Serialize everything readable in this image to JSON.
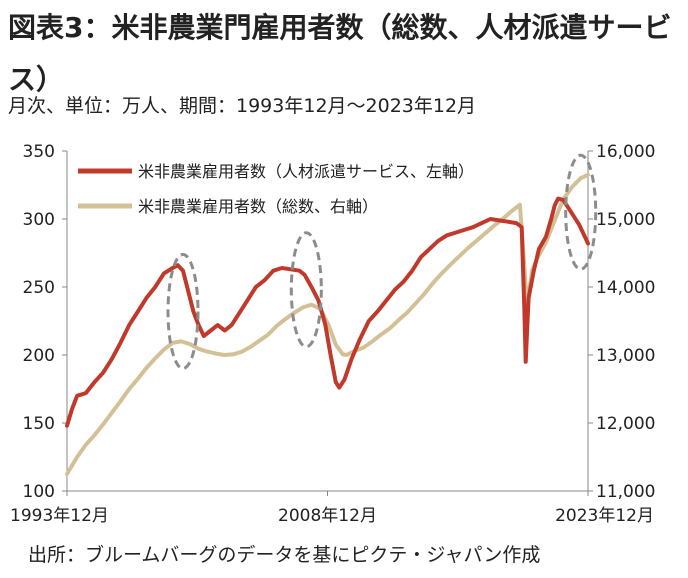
{
  "header": {
    "title": "図表3：米非農業門雇用者数（総数、人材派遣サービス）",
    "subtitle": "月次、単位：万人、期間：1993年12月～2023年12月"
  },
  "footer": {
    "source": "出所：ブルームバーグのデータを基にピクテ・ジャパン作成"
  },
  "colors": {
    "staffing": "#c0392b",
    "total": "#d4c097",
    "highlight": "#8c8c8c",
    "axis": "#888888"
  },
  "chart_data": {
    "type": "line",
    "x_tick_labels": [
      "1993年12月",
      "2008年12月",
      "2023年12月"
    ],
    "y_left": {
      "ticks": [
        100,
        150,
        200,
        250,
        300,
        350
      ],
      "labels": [
        "100",
        "150",
        "200",
        "250",
        "300",
        "350"
      ],
      "range": [
        100,
        350
      ]
    },
    "y_right": {
      "ticks": [
        11000,
        12000,
        13000,
        14000,
        15000,
        16000
      ],
      "labels": [
        "11,000",
        "12,000",
        "13,000",
        "14,000",
        "15,000",
        "16,000"
      ],
      "range": [
        11000,
        16000
      ]
    },
    "series": [
      {
        "name": "米非農業雇用者数（人材派遣サービス、左軸）",
        "axis": "left",
        "points": [
          [
            1993.92,
            148
          ],
          [
            1994.2,
            160
          ],
          [
            1994.5,
            170
          ],
          [
            1995.0,
            172
          ],
          [
            1995.5,
            180
          ],
          [
            1996.0,
            187
          ],
          [
            1996.5,
            197
          ],
          [
            1997.0,
            209
          ],
          [
            1997.5,
            222
          ],
          [
            1998.0,
            232
          ],
          [
            1998.5,
            242
          ],
          [
            1999.0,
            250
          ],
          [
            1999.5,
            260
          ],
          [
            2000.0,
            264
          ],
          [
            2000.3,
            266
          ],
          [
            2000.6,
            262
          ],
          [
            2000.9,
            247
          ],
          [
            2001.2,
            232
          ],
          [
            2001.5,
            222
          ],
          [
            2001.8,
            214
          ],
          [
            2002.2,
            218
          ],
          [
            2002.6,
            222
          ],
          [
            2003.0,
            218
          ],
          [
            2003.4,
            222
          ],
          [
            2003.8,
            230
          ],
          [
            2004.3,
            240
          ],
          [
            2004.8,
            250
          ],
          [
            2005.3,
            255
          ],
          [
            2005.8,
            262
          ],
          [
            2006.3,
            264
          ],
          [
            2006.8,
            263
          ],
          [
            2007.3,
            262
          ],
          [
            2007.6,
            259
          ],
          [
            2008.0,
            250
          ],
          [
            2008.4,
            240
          ],
          [
            2008.8,
            222
          ],
          [
            2009.1,
            200
          ],
          [
            2009.4,
            180
          ],
          [
            2009.6,
            176
          ],
          [
            2009.9,
            182
          ],
          [
            2010.3,
            197
          ],
          [
            2010.8,
            212
          ],
          [
            2011.3,
            225
          ],
          [
            2011.8,
            232
          ],
          [
            2012.3,
            240
          ],
          [
            2012.8,
            248
          ],
          [
            2013.3,
            254
          ],
          [
            2013.8,
            262
          ],
          [
            2014.3,
            272
          ],
          [
            2014.8,
            278
          ],
          [
            2015.3,
            284
          ],
          [
            2015.8,
            288
          ],
          [
            2016.3,
            290
          ],
          [
            2016.8,
            292
          ],
          [
            2017.3,
            294
          ],
          [
            2017.8,
            297
          ],
          [
            2018.3,
            300
          ],
          [
            2018.8,
            299
          ],
          [
            2019.3,
            298
          ],
          [
            2019.8,
            297
          ],
          [
            2020.1,
            294
          ],
          [
            2020.25,
            235
          ],
          [
            2020.33,
            195
          ],
          [
            2020.5,
            242
          ],
          [
            2020.8,
            262
          ],
          [
            2021.1,
            278
          ],
          [
            2021.5,
            287
          ],
          [
            2021.8,
            300
          ],
          [
            2022.0,
            310
          ],
          [
            2022.2,
            315
          ],
          [
            2022.5,
            314
          ],
          [
            2022.8,
            308
          ],
          [
            2023.1,
            302
          ],
          [
            2023.4,
            296
          ],
          [
            2023.7,
            288
          ],
          [
            2023.92,
            282
          ]
        ]
      },
      {
        "name": "米非農業雇用者数（総数、右軸）",
        "axis": "right",
        "points": [
          [
            1993.92,
            11250
          ],
          [
            1994.5,
            11500
          ],
          [
            1995.0,
            11680
          ],
          [
            1995.5,
            11820
          ],
          [
            1996.0,
            11980
          ],
          [
            1996.5,
            12150
          ],
          [
            1997.0,
            12320
          ],
          [
            1997.5,
            12500
          ],
          [
            1998.0,
            12650
          ],
          [
            1998.5,
            12810
          ],
          [
            1999.0,
            12950
          ],
          [
            1999.5,
            13080
          ],
          [
            2000.0,
            13180
          ],
          [
            2000.5,
            13200
          ],
          [
            2001.0,
            13160
          ],
          [
            2001.5,
            13090
          ],
          [
            2002.0,
            13050
          ],
          [
            2002.5,
            13020
          ],
          [
            2003.0,
            13000
          ],
          [
            2003.5,
            13010
          ],
          [
            2004.0,
            13050
          ],
          [
            2004.5,
            13120
          ],
          [
            2005.0,
            13210
          ],
          [
            2005.5,
            13300
          ],
          [
            2006.0,
            13430
          ],
          [
            2006.5,
            13530
          ],
          [
            2007.0,
            13620
          ],
          [
            2007.5,
            13700
          ],
          [
            2008.0,
            13740
          ],
          [
            2008.5,
            13680
          ],
          [
            2009.0,
            13430
          ],
          [
            2009.4,
            13150
          ],
          [
            2009.8,
            13010
          ],
          [
            2010.0,
            13000
          ],
          [
            2010.5,
            13060
          ],
          [
            2011.0,
            13110
          ],
          [
            2011.5,
            13200
          ],
          [
            2012.0,
            13300
          ],
          [
            2012.5,
            13390
          ],
          [
            2013.0,
            13510
          ],
          [
            2013.5,
            13620
          ],
          [
            2014.0,
            13760
          ],
          [
            2014.5,
            13900
          ],
          [
            2015.0,
            14060
          ],
          [
            2015.5,
            14200
          ],
          [
            2016.0,
            14330
          ],
          [
            2016.5,
            14450
          ],
          [
            2017.0,
            14570
          ],
          [
            2017.5,
            14680
          ],
          [
            2018.0,
            14790
          ],
          [
            2018.5,
            14900
          ],
          [
            2019.0,
            15000
          ],
          [
            2019.5,
            15110
          ],
          [
            2020.0,
            15210
          ],
          [
            2020.25,
            14320
          ],
          [
            2020.4,
            13720
          ],
          [
            2020.7,
            14240
          ],
          [
            2021.0,
            14420
          ],
          [
            2021.5,
            14660
          ],
          [
            2022.0,
            14980
          ],
          [
            2022.5,
            15290
          ],
          [
            2023.0,
            15470
          ],
          [
            2023.5,
            15600
          ],
          [
            2023.92,
            15650
          ]
        ]
      }
    ],
    "highlights": [
      {
        "x": 2000.6,
        "y_left": 232,
        "label": ""
      },
      {
        "x": 2007.7,
        "y_left": 248,
        "label": ""
      },
      {
        "x": 2023.5,
        "y_left": 305,
        "label": ""
      }
    ],
    "legend_position": "top-left",
    "grid": false
  }
}
